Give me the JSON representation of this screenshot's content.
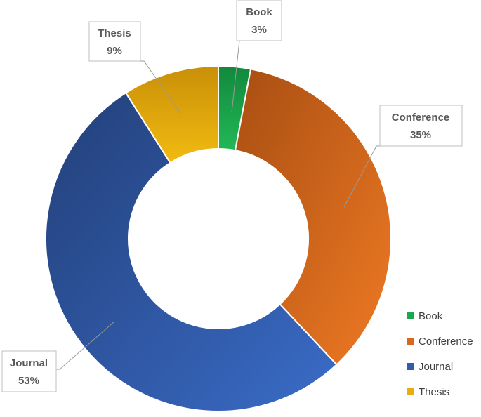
{
  "chart_data": {
    "type": "pie",
    "variant": "donut",
    "categories": [
      "Book",
      "Conference",
      "Journal",
      "Thesis"
    ],
    "values": [
      3,
      35,
      53,
      9
    ],
    "value_labels": [
      "3%",
      "35%",
      "53%",
      "9%"
    ],
    "colors": [
      "#1aa84f",
      "#d9681e",
      "#2f5dae",
      "#e8ad0e"
    ],
    "legend": {
      "position": "bottom-right",
      "entries": [
        "Book",
        "Conference",
        "Journal",
        "Thesis"
      ]
    }
  }
}
